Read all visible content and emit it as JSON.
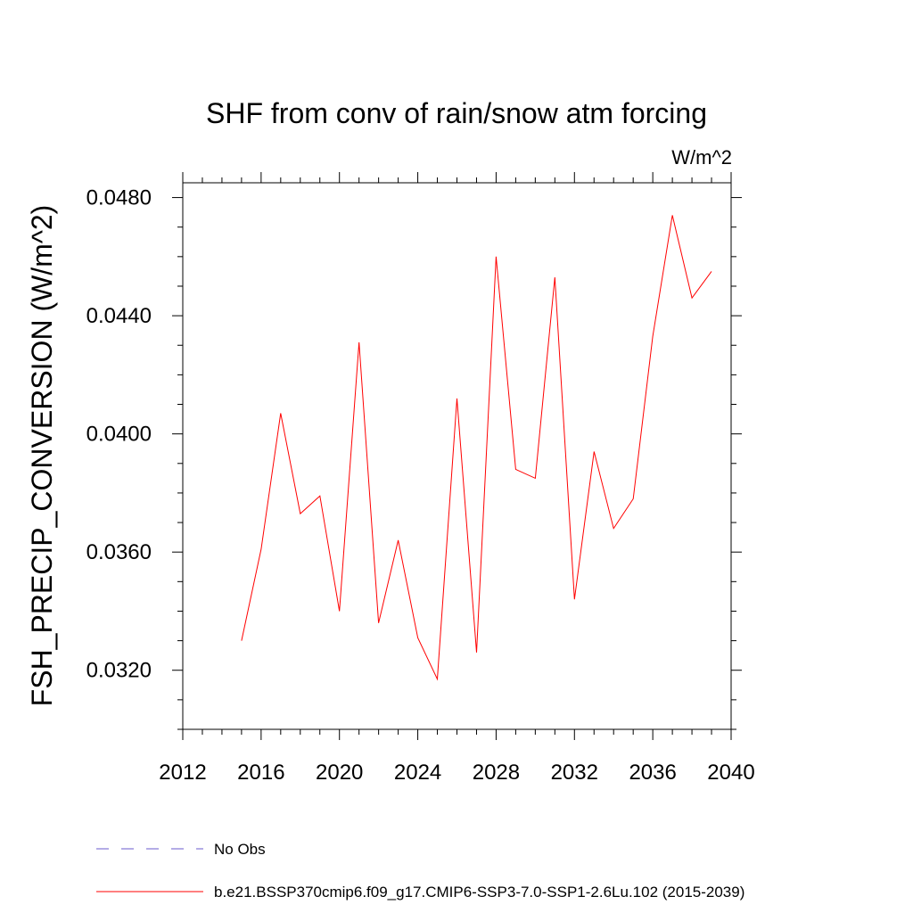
{
  "chart_data": {
    "type": "line",
    "title": "SHF from conv of rain/snow atm forcing",
    "units": "W/m^2",
    "ylabel": "FSH_PRECIP_CONVERSION  (W/m^2)",
    "xlabel": "",
    "xlim": [
      2012,
      2040
    ],
    "ylim": [
      0.03,
      0.0485
    ],
    "x_ticks": [
      2012,
      2016,
      2020,
      2024,
      2028,
      2032,
      2036,
      2040
    ],
    "x_tick_labels": [
      "2012",
      "2016",
      "2020",
      "2024",
      "2028",
      "2032",
      "2036",
      "2040"
    ],
    "y_ticks": [
      0.032,
      0.036,
      0.04,
      0.044,
      0.048
    ],
    "y_tick_labels": [
      "0.0320",
      "0.0360",
      "0.0400",
      "0.0440",
      "0.0480"
    ],
    "grid": false,
    "legend_position": "bottom",
    "series": [
      {
        "name": "b.e21.BSSP370cmip6.f09_g17.CMIP6-SSP3-7.0-SSP1-2.6Lu.102 (2015-2039)",
        "color": "#ff0000",
        "style": "solid",
        "x": [
          2015,
          2016,
          2017,
          2018,
          2019,
          2020,
          2021,
          2022,
          2023,
          2024,
          2025,
          2026,
          2027,
          2028,
          2029,
          2030,
          2031,
          2032,
          2033,
          2034,
          2035,
          2036,
          2037,
          2038,
          2039
        ],
        "y": [
          0.033,
          0.0361,
          0.0407,
          0.0373,
          0.0379,
          0.034,
          0.0431,
          0.0336,
          0.0364,
          0.0331,
          0.0317,
          0.0412,
          0.0326,
          0.046,
          0.0388,
          0.0385,
          0.0453,
          0.0344,
          0.0394,
          0.0368,
          0.0378,
          0.0433,
          0.0474,
          0.0446,
          0.0455
        ]
      }
    ],
    "legend": [
      {
        "label": "No Obs",
        "color": "#6a5acd",
        "style": "dashed"
      },
      {
        "label": "b.e21.BSSP370cmip6.f09_g17.CMIP6-SSP3-7.0-SSP1-2.6Lu.102 (2015-2039)",
        "color": "#ff0000",
        "style": "solid"
      }
    ]
  }
}
